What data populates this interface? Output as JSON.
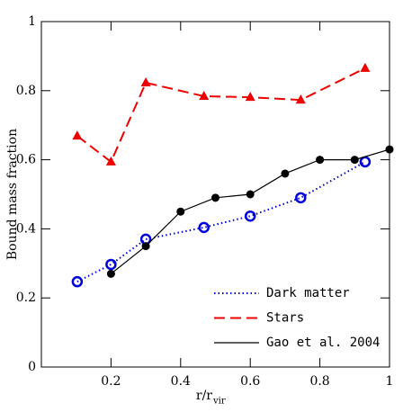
{
  "chart_data": {
    "type": "line",
    "x_label": "r/r",
    "x_label_subscript": "vir",
    "y_label": "Bound mass fraction",
    "xlim": [
      0,
      1
    ],
    "ylim": [
      0,
      1
    ],
    "xticks": [
      0.2,
      0.4,
      0.6,
      0.8,
      1
    ],
    "yticks": [
      0,
      0.2,
      0.4,
      0.6,
      0.8,
      1
    ],
    "legend": "lower right",
    "series": [
      {
        "name": "Dark matter",
        "color": "#0000dd",
        "line_style": "dotted",
        "marker": "open-circle",
        "x": [
          0.103,
          0.2,
          0.3,
          0.467,
          0.6,
          0.745,
          0.93
        ],
        "values": [
          0.247,
          0.297,
          0.37,
          0.404,
          0.437,
          0.49,
          0.594
        ]
      },
      {
        "name": "Stars",
        "color": "#ee0000",
        "line_style": "dashed",
        "marker": "triangle",
        "x": [
          0.103,
          0.2,
          0.3,
          0.467,
          0.6,
          0.745,
          0.93
        ],
        "values": [
          0.669,
          0.594,
          0.823,
          0.784,
          0.781,
          0.773,
          0.865
        ]
      },
      {
        "name": "Gao et al. 2004",
        "color": "#000000",
        "line_style": "solid",
        "marker": "filled-circle",
        "x": [
          0.2,
          0.3,
          0.4,
          0.5,
          0.6,
          0.7,
          0.8,
          0.9,
          1.0
        ],
        "values": [
          0.27,
          0.35,
          0.45,
          0.49,
          0.5,
          0.56,
          0.6,
          0.6,
          0.63
        ]
      }
    ]
  }
}
